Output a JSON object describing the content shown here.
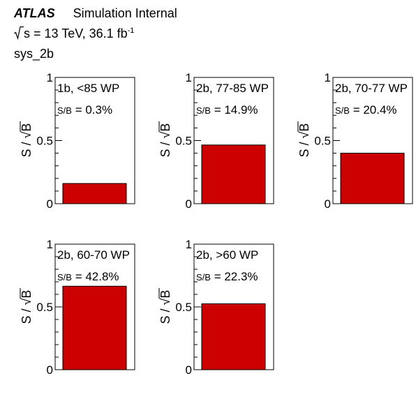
{
  "header": {
    "experiment": "ATLAS",
    "status": "Simulation Internal",
    "energy_prefix": "s",
    "energy_text": " = 13 TeV, 36.1 fb",
    "lumi_exponent": "-1",
    "region": "sys_2b"
  },
  "chart_data": [
    {
      "type": "bar",
      "category": "1b, <85 WP",
      "ratio_label": "S/B",
      "ratio_value": "= 0.3%",
      "value": 0.16,
      "ylim": [
        0,
        1
      ],
      "yticks": [
        "0",
        "0.5",
        "1"
      ],
      "ylabel": "S / √B",
      "color": "#cc0000"
    },
    {
      "type": "bar",
      "category": "2b, 77-85 WP",
      "ratio_label": "S/B",
      "ratio_value": "= 14.9%",
      "value": 0.465,
      "ylim": [
        0,
        1
      ],
      "yticks": [
        "0",
        "0.5",
        "1"
      ],
      "ylabel": "S / √B",
      "color": "#cc0000"
    },
    {
      "type": "bar",
      "category": "2b, 70-77 WP",
      "ratio_label": "S/B",
      "ratio_value": "= 20.4%",
      "value": 0.4,
      "ylim": [
        0,
        1
      ],
      "yticks": [
        "0",
        "0.5",
        "1"
      ],
      "ylabel": "S / √B",
      "color": "#cc0000"
    },
    {
      "type": "bar",
      "category": "2b, 60-70 WP",
      "ratio_label": "S/B",
      "ratio_value": "= 42.8%",
      "value": 0.665,
      "ylim": [
        0,
        1
      ],
      "yticks": [
        "0",
        "0.5",
        "1"
      ],
      "ylabel": "S / √B",
      "color": "#cc0000"
    },
    {
      "type": "bar",
      "category": "2b, >60 WP",
      "ratio_label": "S/B",
      "ratio_value": "= 22.3%",
      "value": 0.525,
      "ylim": [
        0,
        1
      ],
      "yticks": [
        "0",
        "0.5",
        "1"
      ],
      "ylabel": "S / √B",
      "color": "#cc0000"
    }
  ]
}
